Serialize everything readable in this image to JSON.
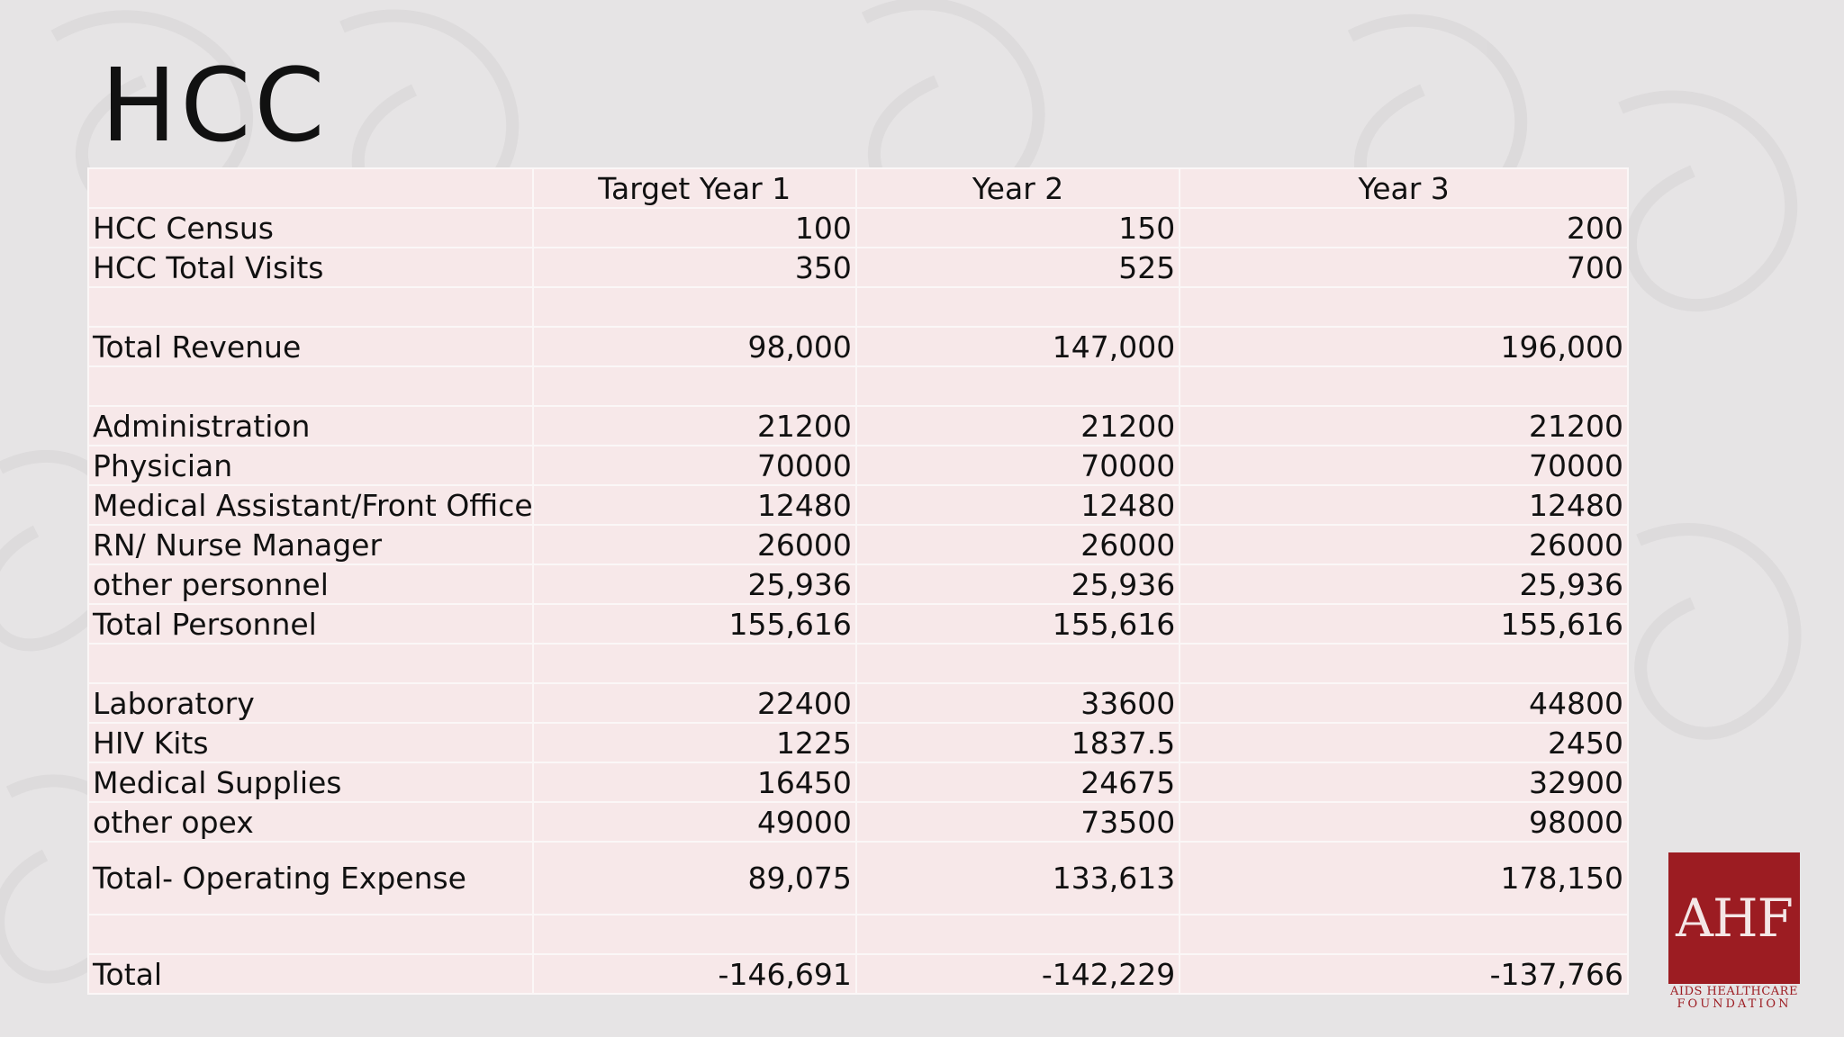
{
  "slide": {
    "title": "HCC"
  },
  "table": {
    "headers": [
      "",
      "Target Year 1",
      "Year 2",
      "Year 3"
    ],
    "rows": [
      {
        "label": "HCC Census",
        "values": [
          "100",
          "150",
          "200"
        ]
      },
      {
        "label": "HCC Total Visits",
        "values": [
          "350",
          "525",
          "700"
        ]
      },
      {
        "label": "",
        "values": [
          "",
          "",
          ""
        ]
      },
      {
        "label": "Total Revenue",
        "values": [
          "98,000",
          "147,000",
          "196,000"
        ]
      },
      {
        "label": "",
        "values": [
          "",
          "",
          ""
        ]
      },
      {
        "label": "Administration",
        "values": [
          "21200",
          "21200",
          "21200"
        ]
      },
      {
        "label": "Physician",
        "values": [
          "70000",
          "70000",
          "70000"
        ]
      },
      {
        "label": "Medical Assistant/Front Office",
        "values": [
          "12480",
          "12480",
          "12480"
        ]
      },
      {
        "label": "RN/ Nurse Manager",
        "values": [
          "26000",
          "26000",
          "26000"
        ]
      },
      {
        "label": "other personnel",
        "values": [
          "25,936",
          "25,936",
          "25,936"
        ]
      },
      {
        "label": "Total Personnel",
        "values": [
          "155,616",
          "155,616",
          "155,616"
        ]
      },
      {
        "label": "",
        "values": [
          "",
          "",
          ""
        ]
      },
      {
        "label": "Laboratory",
        "values": [
          "22400",
          "33600",
          "44800"
        ]
      },
      {
        "label": "HIV Kits",
        "values": [
          "1225",
          "1837.5",
          "2450"
        ]
      },
      {
        "label": "Medical Supplies",
        "values": [
          "16450",
          "24675",
          "32900"
        ]
      },
      {
        "label": "other opex",
        "values": [
          "49000",
          "73500",
          "98000"
        ]
      },
      {
        "label": "Total- Operating Expense",
        "values": [
          "89,075",
          "133,613",
          "178,150"
        ]
      },
      {
        "label": "",
        "values": [
          "",
          "",
          ""
        ]
      },
      {
        "label": "Total",
        "values": [
          "-146,691",
          "-142,229",
          "-137,766"
        ]
      }
    ]
  },
  "logo": {
    "mark": "AHF",
    "caption_line1": "AIDS HEALTHCARE",
    "caption_line2": "FOUNDATION",
    "color": "#9c1c22"
  }
}
